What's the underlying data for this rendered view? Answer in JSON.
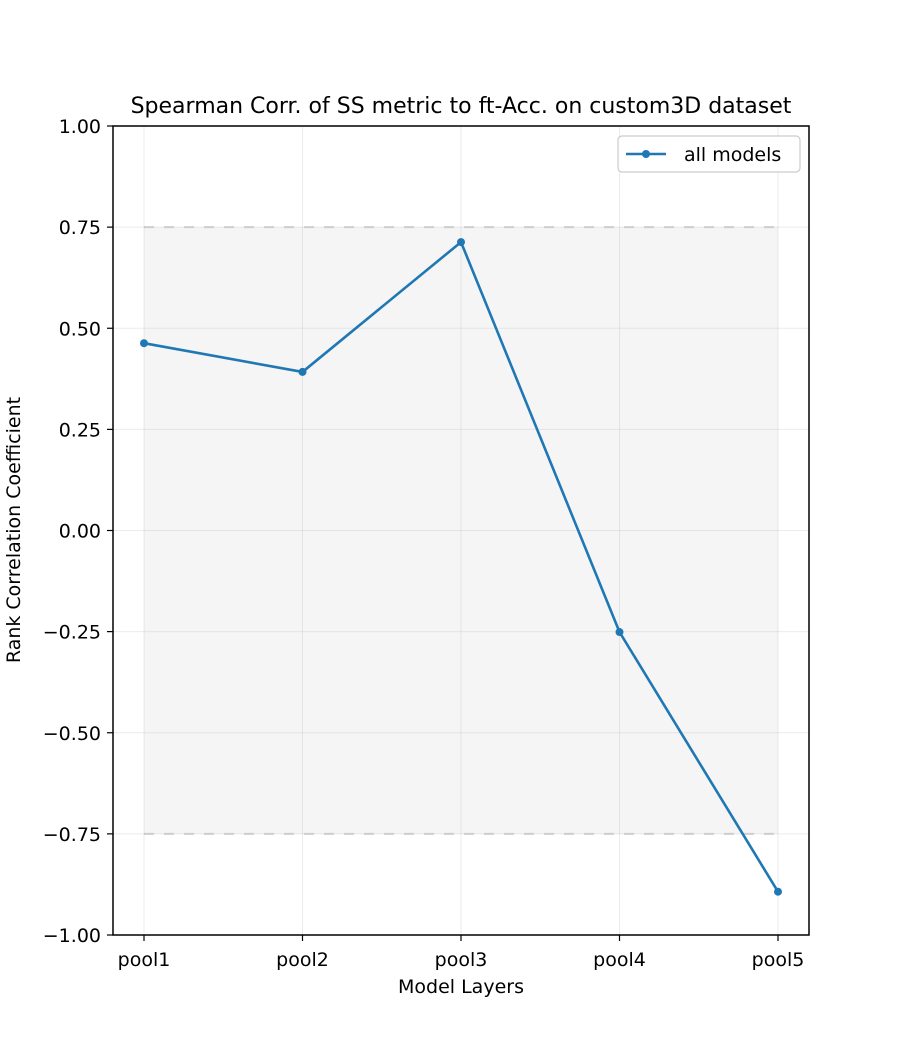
{
  "chart_data": {
    "type": "line",
    "title": "Spearman Corr. of SS metric to ft-Acc. on custom3D dataset",
    "xlabel": "Model Layers",
    "ylabel": "Rank Correlation Coefficient",
    "categories": [
      "pool1",
      "pool2",
      "pool3",
      "pool4",
      "pool5"
    ],
    "series": [
      {
        "name": "all models",
        "values": [
          0.463,
          0.392,
          0.713,
          -0.251,
          -0.893
        ],
        "color": "#1f77b4"
      }
    ],
    "ylim": [
      -1.0,
      1.0
    ],
    "yticks": [
      1.0,
      0.75,
      0.5,
      0.25,
      0.0,
      -0.25,
      -0.5,
      -0.75,
      -1.0
    ],
    "ytick_labels": [
      "1.00",
      "0.75",
      "0.50",
      "0.25",
      "0.00",
      "−0.25",
      "−0.50",
      "−0.75",
      "−1.00"
    ],
    "band": {
      "lower": -0.75,
      "upper": 0.75,
      "fill": "#f5f5f5",
      "line_color": "#d3d3d3"
    },
    "grid": true,
    "legend_position": "top-right"
  }
}
